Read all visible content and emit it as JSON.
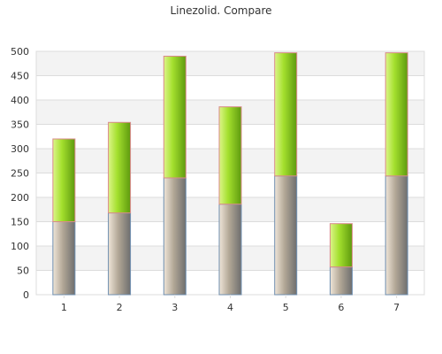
{
  "chart_data": {
    "type": "bar",
    "stacked": true,
    "title": "Linezolid. Compare",
    "xlabel": "",
    "ylabel": "",
    "categories": [
      "1",
      "2",
      "3",
      "4",
      "5",
      "6",
      "7"
    ],
    "series": [
      {
        "values": [
          150,
          168,
          240,
          186,
          244,
          57,
          244
        ],
        "color": "#a89c8c"
      },
      {
        "values": [
          170,
          186,
          250,
          200,
          253,
          89,
          253
        ],
        "color": "#99dd22"
      }
    ],
    "ylim": [
      0,
      500
    ],
    "yticks": [
      0,
      50,
      100,
      150,
      200,
      250,
      300,
      350,
      400,
      450,
      500
    ],
    "grid": true,
    "legend": "none"
  }
}
